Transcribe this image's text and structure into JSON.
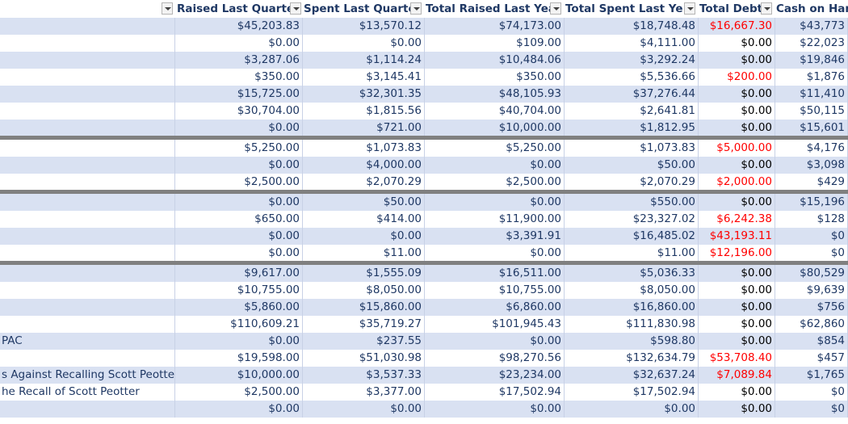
{
  "columns": [
    {
      "key": "raised_q",
      "label": "Raised Last Quarter"
    },
    {
      "key": "spent_q",
      "label": "Spent Last Quarter"
    },
    {
      "key": "raised_y",
      "label": "Total Raised Last Year"
    },
    {
      "key": "spent_y",
      "label": "Total Spent Last Year"
    },
    {
      "key": "debt",
      "label": "Total Debt"
    },
    {
      "key": "cash",
      "label": "Cash on Hand"
    }
  ],
  "groups": [
    [
      {
        "name": "",
        "raised_q": "$45,203.83",
        "spent_q": "$13,570.12",
        "raised_y": "$74,173.00",
        "spent_y": "$18,748.48",
        "debt": "$16,667.30",
        "debt_red": true,
        "cash": "$43,773"
      },
      {
        "name": "",
        "raised_q": "$0.00",
        "spent_q": "$0.00",
        "raised_y": "$109.00",
        "spent_y": "$4,111.00",
        "debt": "$0.00",
        "debt_red": false,
        "cash": "$22,023"
      },
      {
        "name": "",
        "raised_q": "$3,287.06",
        "spent_q": "$1,114.24",
        "raised_y": "$10,484.06",
        "spent_y": "$3,292.24",
        "debt": "$0.00",
        "debt_red": false,
        "cash": "$19,846"
      },
      {
        "name": "",
        "raised_q": "$350.00",
        "spent_q": "$3,145.41",
        "raised_y": "$350.00",
        "spent_y": "$5,536.66",
        "debt": "$200.00",
        "debt_red": true,
        "cash": "$1,876"
      },
      {
        "name": "",
        "raised_q": "$15,725.00",
        "spent_q": "$32,301.35",
        "raised_y": "$48,105.93",
        "spent_y": "$37,276.44",
        "debt": "$0.00",
        "debt_red": false,
        "cash": "$11,410"
      },
      {
        "name": "",
        "raised_q": "$30,704.00",
        "spent_q": "$1,815.56",
        "raised_y": "$40,704.00",
        "spent_y": "$2,641.81",
        "debt": "$0.00",
        "debt_red": false,
        "cash": "$50,115"
      },
      {
        "name": "",
        "raised_q": "$0.00",
        "spent_q": "$721.00",
        "raised_y": "$10,000.00",
        "spent_y": "$1,812.95",
        "debt": "$0.00",
        "debt_red": false,
        "cash": "$15,601"
      }
    ],
    [
      {
        "name": "",
        "raised_q": "$5,250.00",
        "spent_q": "$1,073.83",
        "raised_y": "$5,250.00",
        "spent_y": "$1,073.83",
        "debt": "$5,000.00",
        "debt_red": true,
        "cash": "$4,176"
      },
      {
        "name": "",
        "raised_q": "$0.00",
        "spent_q": "$4,000.00",
        "raised_y": "$0.00",
        "spent_y": "$50.00",
        "debt": "$0.00",
        "debt_red": false,
        "cash": "$3,098"
      },
      {
        "name": "",
        "raised_q": "$2,500.00",
        "spent_q": "$2,070.29",
        "raised_y": "$2,500.00",
        "spent_y": "$2,070.29",
        "debt": "$2,000.00",
        "debt_red": true,
        "cash": "$429"
      }
    ],
    [
      {
        "name": "",
        "raised_q": "$0.00",
        "spent_q": "$50.00",
        "raised_y": "$0.00",
        "spent_y": "$550.00",
        "debt": "$0.00",
        "debt_red": false,
        "cash": "$15,196"
      },
      {
        "name": "",
        "raised_q": "$650.00",
        "spent_q": "$414.00",
        "raised_y": "$11,900.00",
        "spent_y": "$23,327.02",
        "debt": "$6,242.38",
        "debt_red": true,
        "cash": "$128"
      },
      {
        "name": "",
        "raised_q": "$0.00",
        "spent_q": "$0.00",
        "raised_y": "$3,391.91",
        "spent_y": "$16,485.02",
        "debt": "$43,193.11",
        "debt_red": true,
        "cash": "$0"
      },
      {
        "name": "",
        "raised_q": "$0.00",
        "spent_q": "$11.00",
        "raised_y": "$0.00",
        "spent_y": "$11.00",
        "debt": "$12,196.00",
        "debt_red": true,
        "cash": "$0"
      }
    ],
    [
      {
        "name": "",
        "raised_q": "$9,617.00",
        "spent_q": "$1,555.09",
        "raised_y": "$16,511.00",
        "spent_y": "$5,036.33",
        "debt": "$0.00",
        "debt_red": false,
        "cash": "$80,529"
      },
      {
        "name": "",
        "raised_q": "$10,755.00",
        "spent_q": "$8,050.00",
        "raised_y": "$10,755.00",
        "spent_y": "$8,050.00",
        "debt": "$0.00",
        "debt_red": false,
        "cash": "$9,639"
      },
      {
        "name": "",
        "raised_q": "$5,860.00",
        "spent_q": "$15,860.00",
        "raised_y": "$6,860.00",
        "spent_y": "$16,860.00",
        "debt": "$0.00",
        "debt_red": false,
        "cash": "$756"
      },
      {
        "name": "",
        "raised_q": "$110,609.21",
        "spent_q": "$35,719.27",
        "raised_y": "$101,945.43",
        "spent_y": "$111,830.98",
        "debt": "$0.00",
        "debt_red": false,
        "cash": "$62,860"
      },
      {
        "name": "PAC",
        "raised_q": "$0.00",
        "spent_q": "$237.55",
        "raised_y": "$0.00",
        "spent_y": "$598.80",
        "debt": "$0.00",
        "debt_red": false,
        "cash": "$854"
      },
      {
        "name": "",
        "raised_q": "$19,598.00",
        "spent_q": "$51,030.98",
        "raised_y": "$98,270.56",
        "spent_y": "$132,634.79",
        "debt": "$53,708.40",
        "debt_red": true,
        "cash": "$457"
      },
      {
        "name": "s Against Recalling Scott Peotter",
        "raised_q": "$10,000.00",
        "spent_q": "$3,537.33",
        "raised_y": "$23,234.00",
        "spent_y": "$32,637.24",
        "debt": "$7,089.84",
        "debt_red": true,
        "cash": "$1,765"
      },
      {
        "name": "he Recall of Scott Peotter",
        "raised_q": "$2,500.00",
        "spent_q": "$3,377.00",
        "raised_y": "$17,502.94",
        "spent_y": "$17,502.94",
        "debt": "$0.00",
        "debt_red": false,
        "cash": "$0"
      },
      {
        "name": "",
        "raised_q": "$0.00",
        "spent_q": "$0.00",
        "raised_y": "$0.00",
        "spent_y": "$0.00",
        "debt": "$0.00",
        "debt_red": false,
        "cash": "$0"
      }
    ]
  ]
}
